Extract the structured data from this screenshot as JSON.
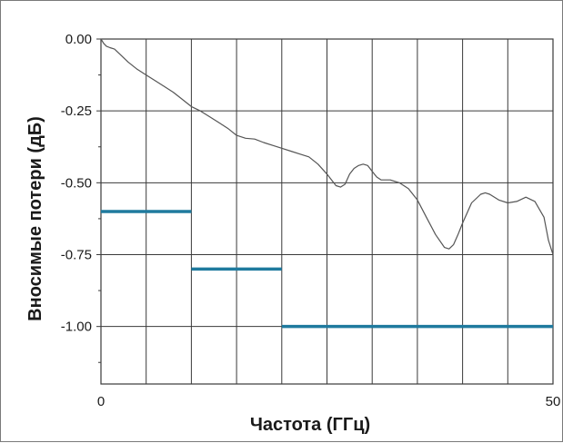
{
  "chart_data": {
    "type": "line",
    "title": "",
    "xlabel": "Частота (ГГц)",
    "ylabel": "Вносимые потери (дБ)",
    "xlim": [
      0,
      50
    ],
    "ylim": [
      -1.2,
      0
    ],
    "x_ticks": [
      0,
      5,
      10,
      15,
      20,
      25,
      30,
      35,
      40,
      45,
      50
    ],
    "x_tick_labels": [
      "0",
      "",
      "",
      "",
      "",
      "",
      "",
      "",
      "",
      "",
      "50"
    ],
    "y_ticks": [
      0,
      -0.25,
      -0.5,
      -0.75,
      -1.0
    ],
    "y_tick_labels": [
      "0.00",
      "-0.25",
      "-0.50",
      "-0.75",
      "-1.00"
    ],
    "grid": true,
    "series": [
      {
        "color": "#555555",
        "x": [
          0,
          0.3,
          0.6,
          1,
          1.5,
          2,
          3,
          4,
          5,
          6,
          7,
          8,
          9,
          10,
          11,
          12,
          13,
          14,
          15,
          16,
          17,
          18,
          19,
          20,
          21,
          22,
          23,
          24,
          25,
          26,
          26.5,
          27,
          27.5,
          28,
          28.5,
          29,
          29.5,
          30,
          30.5,
          31,
          32,
          33,
          34,
          35,
          36,
          37,
          38,
          38.5,
          39,
          39.5,
          40,
          41,
          42,
          42.5,
          43,
          44,
          45,
          46,
          47,
          48,
          49,
          49.5,
          50
        ],
        "y": [
          0,
          -0.015,
          -0.025,
          -0.03,
          -0.035,
          -0.05,
          -0.08,
          -0.105,
          -0.125,
          -0.145,
          -0.165,
          -0.185,
          -0.21,
          -0.235,
          -0.25,
          -0.27,
          -0.29,
          -0.31,
          -0.335,
          -0.345,
          -0.348,
          -0.36,
          -0.37,
          -0.38,
          -0.39,
          -0.4,
          -0.41,
          -0.435,
          -0.47,
          -0.51,
          -0.515,
          -0.505,
          -0.47,
          -0.45,
          -0.44,
          -0.435,
          -0.44,
          -0.46,
          -0.48,
          -0.49,
          -0.49,
          -0.5,
          -0.52,
          -0.56,
          -0.62,
          -0.68,
          -0.725,
          -0.73,
          -0.715,
          -0.68,
          -0.64,
          -0.57,
          -0.54,
          -0.535,
          -0.54,
          -0.56,
          -0.57,
          -0.565,
          -0.55,
          -0.565,
          -0.62,
          -0.7,
          -0.75
        ]
      },
      {
        "color": "#1f7a9e",
        "segments": [
          {
            "x": [
              0,
              10
            ],
            "y": -0.6
          },
          {
            "x": [
              10,
              20
            ],
            "y": -0.8
          },
          {
            "x": [
              20,
              50
            ],
            "y": -1.0
          }
        ]
      }
    ]
  }
}
